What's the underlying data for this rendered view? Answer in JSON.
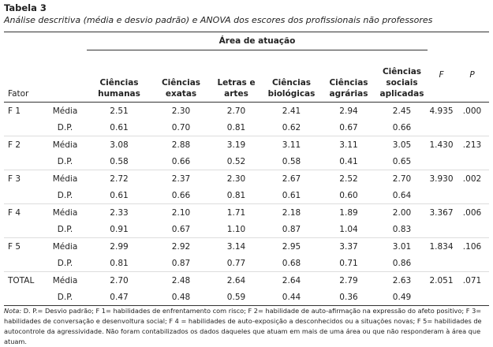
{
  "header": {
    "title": "Tabela 3",
    "subtitle": "Análise descritiva (média e desvio padrão) e ANOVA dos escores dos profissionais não professores"
  },
  "table": {
    "group_header": "Área de atuação",
    "factor_header": "Fator",
    "columns": [
      "Ciências\nhumanas",
      "Ciências\nexatas",
      "Letras e\nartes",
      "Ciências\nbiológicas",
      "Ciências\nagrárias",
      "Ciências\nsociais\naplicadas"
    ],
    "f_header": "F",
    "p_header": "P",
    "rows": [
      {
        "factor": "F 1",
        "stat": "Média",
        "values": [
          "2.51",
          "2.30",
          "2.70",
          "2.41",
          "2.94",
          "2.45"
        ],
        "f": "4.935",
        "p": ".000"
      },
      {
        "stat": "D.P.",
        "values": [
          "0.61",
          "0.70",
          "0.81",
          "0.62",
          "0.67",
          "0.66"
        ]
      },
      {
        "factor": "F 2",
        "stat": "Média",
        "values": [
          "3.08",
          "2.88",
          "3.19",
          "3.11",
          "3.11",
          "3.05"
        ],
        "f": "1.430",
        "p": ".213"
      },
      {
        "stat": "D.P.",
        "values": [
          "0.58",
          "0.66",
          "0.52",
          "0.58",
          "0.41",
          "0.65"
        ]
      },
      {
        "factor": "F 3",
        "stat": "Média",
        "values": [
          "2.72",
          "2.37",
          "2.30",
          "2.67",
          "2.52",
          "2.70"
        ],
        "f": "3.930",
        "p": ".002"
      },
      {
        "stat": "D.P.",
        "values": [
          "0.61",
          "0.66",
          "0.81",
          "0.61",
          "0.60",
          "0.64"
        ]
      },
      {
        "factor": "F 4",
        "stat": "Média",
        "values": [
          "2.33",
          "2.10",
          "1.71",
          "2.18",
          "1.89",
          "2.00"
        ],
        "f": "3.367",
        "p": ".006"
      },
      {
        "stat": "D.P.",
        "values": [
          "0.91",
          "0.67",
          "1.10",
          "0.87",
          "1.04",
          "0.83"
        ]
      },
      {
        "factor": "F 5",
        "stat": "Média",
        "values": [
          "2.99",
          "2.92",
          "3.14",
          "2.95",
          "3.37",
          "3.01"
        ],
        "f": "1.834",
        "p": ".106"
      },
      {
        "stat": "D.P.",
        "values": [
          "0.81",
          "0.87",
          "0.77",
          "0.68",
          "0.71",
          "0.86"
        ]
      },
      {
        "factor": "TOTAL",
        "stat": "Média",
        "values": [
          "2.70",
          "2.48",
          "2.64",
          "2.64",
          "2.79",
          "2.63"
        ],
        "f": "2.051",
        "p": ".071"
      },
      {
        "stat": "D.P.",
        "values": [
          "0.47",
          "0.48",
          "0.59",
          "0.44",
          "0.36",
          "0.49"
        ]
      }
    ]
  },
  "note": {
    "label": "Nota:",
    "text": "D. P.= Desvio padrão; F 1= habilidades de enfrentamento com risco; F 2= habilidade de auto-afirmação na expressão do afeto positivo; F 3= habilidades de conversação e desenvoltura social; F 4 = habilidades de auto-exposição a desconhecidos ou a situações novas; F 5= habilidades de autocontrole da agressividade. Não foram contabilizados os dados daqueles que atuam em mais de uma área ou que não responderam à área que atuam."
  }
}
